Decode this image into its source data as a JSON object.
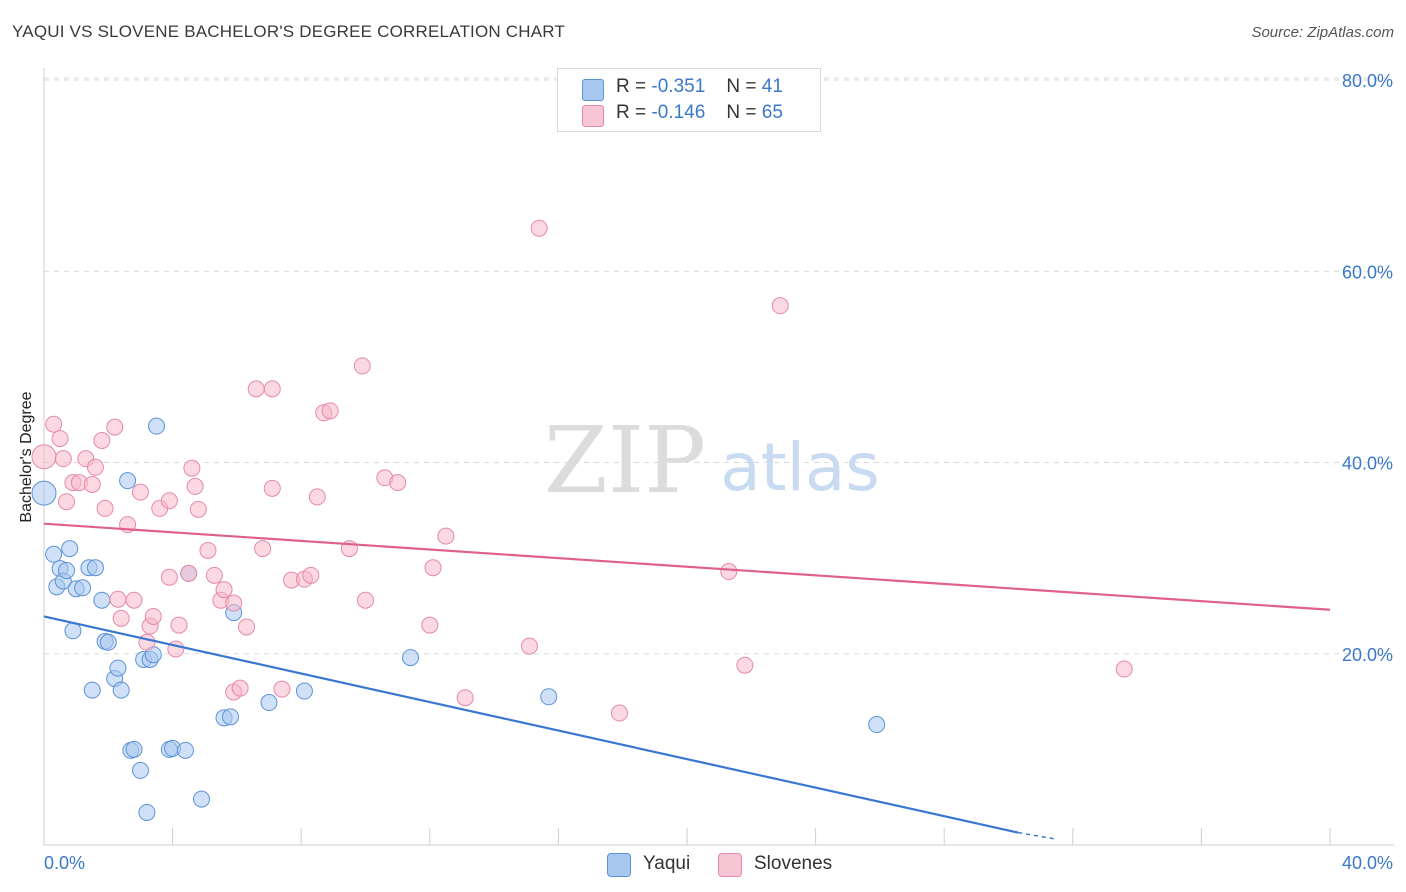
{
  "header": {
    "title": "YAQUI VS SLOVENE BACHELOR'S DEGREE CORRELATION CHART",
    "source": "Source: ZipAtlas.com"
  },
  "watermark": {
    "zip": "ZIP",
    "atlas": "atlas"
  },
  "colors": {
    "yaqui_fill": "#a9c8f0",
    "yaqui_stroke": "#5b93d6",
    "yaqui_line": "#3a78d0",
    "slovene_fill": "#f7b8cb",
    "slovene_stroke": "#e58aa8",
    "slovene_line": "#e0608c",
    "grid": "#d9d9d9",
    "tick_label": "#3a78c9"
  },
  "legend_top": [
    {
      "r_label": "R =",
      "r_value": "-0.351",
      "n_label": "N =",
      "n_value": "41"
    },
    {
      "r_label": "R =",
      "r_value": "-0.146",
      "n_label": "N =",
      "n_value": "65"
    }
  ],
  "chart_data": {
    "type": "scatter",
    "title": "YAQUI VS SLOVENE BACHELOR'S DEGREE CORRELATION CHART",
    "xlabel": "",
    "ylabel": "Bachelor's Degree",
    "xlim": [
      0,
      40
    ],
    "ylim": [
      0,
      80
    ],
    "x_tick_labels": [
      "0.0%",
      "40.0%"
    ],
    "y_ticks": [
      20,
      40,
      60,
      80
    ],
    "y_tick_labels": [
      "20.0%",
      "40.0%",
      "60.0%",
      "80.0%"
    ],
    "grid": true,
    "legend_position": "bottom",
    "series": [
      {
        "name": "Yaqui",
        "r": -0.351,
        "n": 41,
        "trend": {
          "x": [
            0,
            30.3
          ],
          "y": [
            23.9,
            1.3
          ],
          "dashed_to": [
            31.5,
            0.6
          ]
        },
        "points": [
          [
            0.0,
            36.8
          ],
          [
            0.3,
            30.4
          ],
          [
            0.4,
            27.0
          ],
          [
            0.5,
            28.9
          ],
          [
            0.6,
            27.6
          ],
          [
            0.7,
            28.7
          ],
          [
            0.8,
            31.0
          ],
          [
            0.9,
            22.4
          ],
          [
            1.0,
            26.8
          ],
          [
            1.2,
            26.9
          ],
          [
            1.4,
            29.0
          ],
          [
            1.6,
            29.0
          ],
          [
            1.5,
            16.2
          ],
          [
            1.8,
            25.6
          ],
          [
            1.9,
            21.3
          ],
          [
            2.0,
            21.2
          ],
          [
            2.2,
            17.4
          ],
          [
            2.3,
            18.5
          ],
          [
            2.4,
            16.2
          ],
          [
            2.6,
            38.1
          ],
          [
            2.7,
            9.9
          ],
          [
            2.8,
            10.0
          ],
          [
            3.0,
            7.8
          ],
          [
            3.1,
            19.4
          ],
          [
            3.2,
            3.4
          ],
          [
            3.3,
            19.4
          ],
          [
            3.4,
            19.9
          ],
          [
            3.5,
            43.8
          ],
          [
            3.9,
            10.0
          ],
          [
            4.0,
            10.1
          ],
          [
            4.4,
            9.9
          ],
          [
            4.5,
            28.4
          ],
          [
            4.9,
            4.8
          ],
          [
            5.6,
            13.3
          ],
          [
            5.8,
            13.4
          ],
          [
            5.9,
            24.3
          ],
          [
            7.0,
            14.9
          ],
          [
            8.1,
            16.1
          ],
          [
            11.4,
            19.6
          ],
          [
            15.7,
            15.5
          ],
          [
            25.9,
            12.6
          ]
        ]
      },
      {
        "name": "Slovenes",
        "r": -0.146,
        "n": 65,
        "trend": {
          "x": [
            0,
            40
          ],
          "y": [
            33.6,
            24.6
          ]
        },
        "points": [
          [
            0.0,
            40.6
          ],
          [
            0.3,
            44.0
          ],
          [
            0.5,
            42.5
          ],
          [
            0.6,
            40.4
          ],
          [
            0.7,
            35.9
          ],
          [
            0.9,
            37.9
          ],
          [
            1.1,
            37.9
          ],
          [
            1.3,
            40.4
          ],
          [
            1.5,
            37.7
          ],
          [
            1.6,
            39.5
          ],
          [
            1.8,
            42.3
          ],
          [
            1.9,
            35.2
          ],
          [
            2.2,
            43.7
          ],
          [
            2.3,
            25.7
          ],
          [
            2.4,
            23.7
          ],
          [
            2.6,
            33.5
          ],
          [
            2.8,
            25.6
          ],
          [
            3.0,
            36.9
          ],
          [
            3.2,
            21.2
          ],
          [
            3.3,
            22.9
          ],
          [
            3.4,
            23.9
          ],
          [
            3.6,
            35.2
          ],
          [
            3.9,
            36.0
          ],
          [
            3.9,
            28.0
          ],
          [
            4.1,
            20.5
          ],
          [
            4.2,
            23.0
          ],
          [
            4.5,
            28.4
          ],
          [
            4.6,
            39.4
          ],
          [
            4.7,
            37.5
          ],
          [
            4.8,
            35.1
          ],
          [
            5.1,
            30.8
          ],
          [
            5.3,
            28.2
          ],
          [
            5.5,
            25.6
          ],
          [
            5.6,
            26.7
          ],
          [
            5.9,
            25.3
          ],
          [
            5.9,
            16.0
          ],
          [
            6.1,
            16.4
          ],
          [
            6.3,
            22.8
          ],
          [
            6.6,
            47.7
          ],
          [
            6.8,
            31.0
          ],
          [
            7.1,
            47.7
          ],
          [
            7.1,
            37.3
          ],
          [
            7.4,
            16.3
          ],
          [
            7.7,
            27.7
          ],
          [
            8.1,
            27.8
          ],
          [
            8.3,
            28.2
          ],
          [
            8.5,
            36.4
          ],
          [
            8.7,
            45.2
          ],
          [
            8.9,
            45.4
          ],
          [
            9.5,
            31.0
          ],
          [
            9.9,
            50.1
          ],
          [
            10.0,
            25.6
          ],
          [
            10.6,
            38.4
          ],
          [
            11.0,
            37.9
          ],
          [
            12.0,
            23.0
          ],
          [
            12.1,
            29.0
          ],
          [
            12.5,
            32.3
          ],
          [
            13.1,
            15.4
          ],
          [
            15.1,
            20.8
          ],
          [
            15.4,
            64.5
          ],
          [
            17.9,
            13.8
          ],
          [
            21.3,
            28.6
          ],
          [
            21.8,
            18.8
          ],
          [
            22.9,
            56.4
          ],
          [
            33.6,
            18.4
          ]
        ]
      }
    ]
  }
}
